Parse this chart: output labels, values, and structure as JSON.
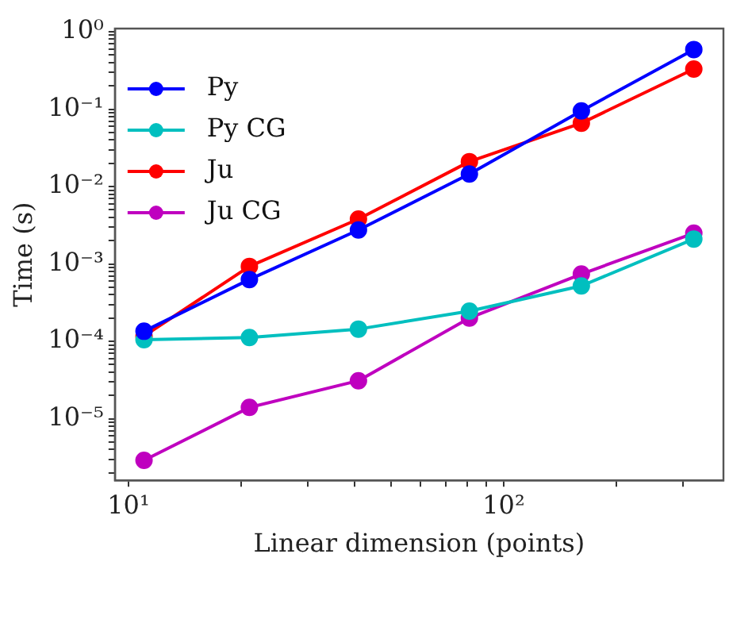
{
  "chart_data": {
    "type": "line",
    "xlabel": "Linear dimension (points)",
    "ylabel": "Time (s)",
    "log": "xy",
    "marker": "circle",
    "line_style": "solid",
    "grid": false,
    "legend": "top left",
    "x": [
      11,
      21,
      41,
      81,
      161,
      321
    ],
    "xlim": [
      9.2,
      385
    ],
    "ylim": [
      1.6e-06,
      1.1
    ],
    "xticks": [
      {
        "value": 10,
        "label": "10¹"
      },
      {
        "value": 20,
        "label": null
      },
      {
        "value": 30,
        "label": null
      },
      {
        "value": 40,
        "label": null
      },
      {
        "value": 50,
        "label": null
      },
      {
        "value": 60,
        "label": null
      },
      {
        "value": 70,
        "label": null
      },
      {
        "value": 80,
        "label": null
      },
      {
        "value": 90,
        "label": null
      },
      {
        "value": 100,
        "label": "10²"
      },
      {
        "value": 200,
        "label": null
      },
      {
        "value": 300,
        "label": null
      }
    ],
    "yticks": [
      {
        "value": 2e-06,
        "label": null
      },
      {
        "value": 3e-06,
        "label": null
      },
      {
        "value": 4e-06,
        "label": null
      },
      {
        "value": 5e-06,
        "label": null
      },
      {
        "value": 6e-06,
        "label": null
      },
      {
        "value": 7e-06,
        "label": null
      },
      {
        "value": 8e-06,
        "label": null
      },
      {
        "value": 9e-06,
        "label": null
      },
      {
        "value": 1e-05,
        "label": "10⁻⁵"
      },
      {
        "value": 2e-05,
        "label": null
      },
      {
        "value": 3e-05,
        "label": null
      },
      {
        "value": 4e-05,
        "label": null
      },
      {
        "value": 5e-05,
        "label": null
      },
      {
        "value": 6e-05,
        "label": null
      },
      {
        "value": 7e-05,
        "label": null
      },
      {
        "value": 8e-05,
        "label": null
      },
      {
        "value": 9e-05,
        "label": null
      },
      {
        "value": 0.0001,
        "label": "10⁻⁴"
      },
      {
        "value": 0.0002,
        "label": null
      },
      {
        "value": 0.0003,
        "label": null
      },
      {
        "value": 0.0004,
        "label": null
      },
      {
        "value": 0.0005,
        "label": null
      },
      {
        "value": 0.0006,
        "label": null
      },
      {
        "value": 0.0007,
        "label": null
      },
      {
        "value": 0.0008,
        "label": null
      },
      {
        "value": 0.0009,
        "label": null
      },
      {
        "value": 0.001,
        "label": "10⁻³"
      },
      {
        "value": 0.002,
        "label": null
      },
      {
        "value": 0.003,
        "label": null
      },
      {
        "value": 0.004,
        "label": null
      },
      {
        "value": 0.005,
        "label": null
      },
      {
        "value": 0.006,
        "label": null
      },
      {
        "value": 0.007,
        "label": null
      },
      {
        "value": 0.008,
        "label": null
      },
      {
        "value": 0.009,
        "label": null
      },
      {
        "value": 0.01,
        "label": "10⁻²"
      },
      {
        "value": 0.02,
        "label": null
      },
      {
        "value": 0.03,
        "label": null
      },
      {
        "value": 0.04,
        "label": null
      },
      {
        "value": 0.05,
        "label": null
      },
      {
        "value": 0.06,
        "label": null
      },
      {
        "value": 0.07,
        "label": null
      },
      {
        "value": 0.08,
        "label": null
      },
      {
        "value": 0.09,
        "label": null
      },
      {
        "value": 0.1,
        "label": "10⁻¹"
      },
      {
        "value": 0.2,
        "label": null
      },
      {
        "value": 0.3,
        "label": null
      },
      {
        "value": 0.4,
        "label": null
      },
      {
        "value": 0.5,
        "label": null
      },
      {
        "value": 0.6,
        "label": null
      },
      {
        "value": 0.7,
        "label": null
      },
      {
        "value": 0.8,
        "label": null
      },
      {
        "value": 0.9,
        "label": null
      },
      {
        "value": 1,
        "label": "10⁰"
      }
    ],
    "series": [
      {
        "name": "Py",
        "color": "#0000ff",
        "values": [
          0.000135,
          0.00063,
          0.00275,
          0.0145,
          0.095,
          0.59
        ]
      },
      {
        "name": "Py CG",
        "color": "#00bfbf",
        "values": [
          0.000105,
          0.000112,
          0.000144,
          0.000246,
          0.00052,
          0.0021
        ]
      },
      {
        "name": "Ju",
        "color": "#ff0000",
        "values": [
          0.000117,
          0.00093,
          0.0038,
          0.021,
          0.066,
          0.33
        ]
      },
      {
        "name": "Ju CG",
        "color": "#bf00bf",
        "values": [
          2.9e-06,
          1.4e-05,
          3.1e-05,
          0.0002,
          0.00074,
          0.0025
        ]
      }
    ]
  }
}
